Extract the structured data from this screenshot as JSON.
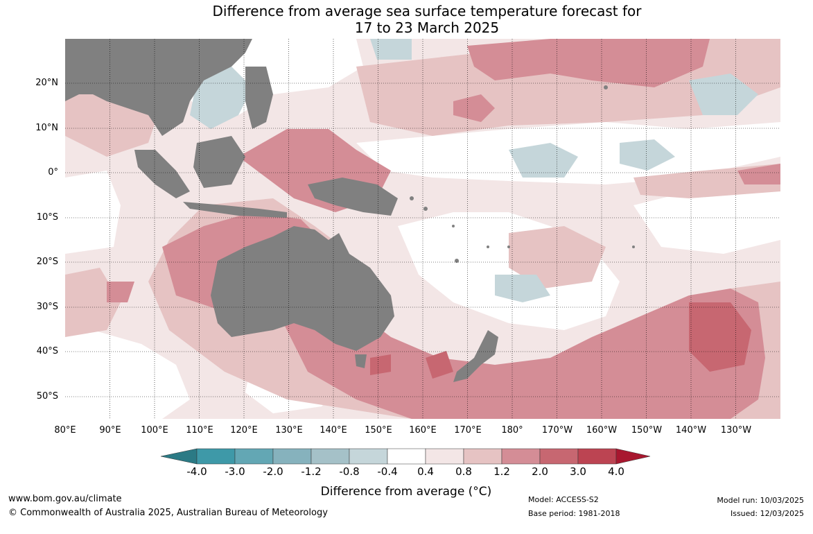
{
  "header": {
    "title_line1": "Difference from average sea surface temperature forecast for",
    "title_line2": "17 to 23 March 2025"
  },
  "map": {
    "latitude_labels": [
      "20°N",
      "10°N",
      "0°",
      "10°S",
      "20°S",
      "30°S",
      "40°S",
      "50°S"
    ],
    "longitude_labels": [
      "80°E",
      "90°E",
      "100°E",
      "110°E",
      "120°E",
      "130°E",
      "140°E",
      "150°E",
      "160°E",
      "170°E",
      "180°",
      "170°W",
      "160°W",
      "150°W",
      "140°W",
      "130°W"
    ],
    "extent": {
      "lon_min_east": 80,
      "lon_max_east": 240,
      "lat_min": -55,
      "lat_max": 30
    },
    "colors": {
      "land": "#808080",
      "ocean_neutral": "#ffffff",
      "warm_0_4": "#f3e6e6",
      "warm_0_8": "#e6c3c3",
      "warm_1_2": "#d48d96",
      "warm_2_0": "#c76771",
      "warm_3_0": "#bc4452",
      "cool_0_4": "#c5d6da",
      "cool_0_8": "#a5c1c8",
      "cool_1_2": "#86b2bd"
    }
  },
  "colorbar": {
    "tick_labels": [
      "-4.0",
      "-3.0",
      "-2.0",
      "-1.2",
      "-0.8",
      "-0.4",
      "0.4",
      "0.8",
      "1.2",
      "2.0",
      "3.0",
      "4.0"
    ],
    "segment_colors": [
      "#3e99a8",
      "#63a7b4",
      "#86b2bd",
      "#a5c1c8",
      "#c5d6da",
      "#ffffff",
      "#f3e6e6",
      "#e6c3c3",
      "#d48d96",
      "#c76771",
      "#bc4452"
    ],
    "low_extend_color": "#2b7a85",
    "high_extend_color": "#a8172f",
    "title": "Difference from average (°C)"
  },
  "footer": {
    "website": "www.bom.gov.au/climate",
    "copyright": "© Commonwealth of Australia 2025, Australian Bureau of Meteorology",
    "model": "Model: ACCESS-S2",
    "base_period": "Base period: 1981-2018",
    "model_run": "Model run: 10/03/2025",
    "issued": "Issued: 12/03/2025"
  }
}
